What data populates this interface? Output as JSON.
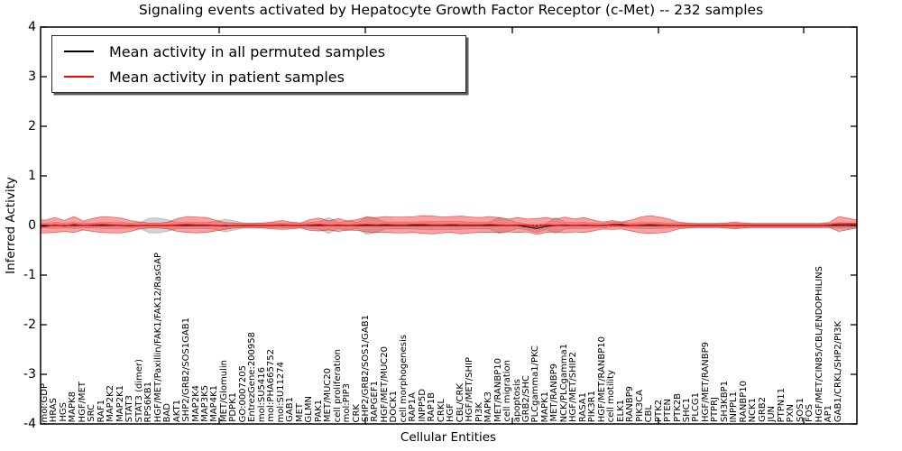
{
  "title": "Signaling events activated by Hepatocyte Growth Factor Receptor (c-Met) -- 232 samples",
  "legend": {
    "items": [
      {
        "label": "Mean activity in all permuted samples",
        "color": "#000000"
      },
      {
        "label": "Mean activity in patient samples",
        "color": "#ff0000"
      }
    ],
    "position": "upper left"
  },
  "axes": {
    "ylabel": "Inferred Activity",
    "xlabel": "Cellular Entities",
    "y_tick_labels": [
      "4",
      "3",
      "2",
      "1",
      "0",
      "-1",
      "-2",
      "-3",
      "-4"
    ],
    "ylim": [
      -4,
      4
    ]
  },
  "colors": {
    "patient_line": "#ff0000",
    "permuted_line": "#000000",
    "patient_band": "rgba(255,30,30,0.42)",
    "permuted_band": "rgba(110,110,110,0.30)",
    "background": "#ffffff"
  },
  "chart_data": {
    "type": "line",
    "title": "Signaling events activated by Hepatocyte Growth Factor Receptor (c-Met) -- 232 samples",
    "xlabel": "Cellular Entities",
    "ylabel": "Inferred Activity",
    "ylim": [
      -4,
      4
    ],
    "grid": false,
    "legend_position": "upper left",
    "sample_count_in_title": 232,
    "categories": [
      "mol:GDP",
      "HRAS",
      "HGS",
      "MAPK8",
      "HGF/MET",
      "SRC",
      "RAF1",
      "MAP2K2",
      "MAP2K1",
      "STAT3",
      "STAT3 (dimer)",
      "RPS6KB1",
      "HGF/MET/Paxillin/FAK1/FAK12/RasGAP",
      "BAD",
      "AKT1",
      "SHP2/GRB2/SOS1GAB1",
      "MAP2K4",
      "MAP3K5",
      "MAP4K1",
      "MET/Glomulin",
      "PDPK1",
      "GO:0007205",
      "EntrezGene:200958",
      "mol:SU5416",
      "mol:PHA665752",
      "mol:SU11274",
      "GAB1",
      "MET",
      "GLMN",
      "PAK1",
      "MET/MUC20",
      "cell proliferation",
      "mol:PIP3",
      "CRK",
      "SHP2/GRB2/SOS1/GAB1",
      "RAPGEF1",
      "HGF/MET/MUC20",
      "DOCK1",
      "cell morphogenesis",
      "RAP1A",
      "INPP5D",
      "RAP1B",
      "CRKL",
      "HGF",
      "CBL/CRK",
      "HGF/MET/SHIP",
      "PI3K",
      "MAPK3",
      "MET/RANBP10",
      "cell migration",
      "apoptosis",
      "GRB2/SHC",
      "PLCgamma1/PKC",
      "MAPK1",
      "MET/RANBP9",
      "NCK/PLCgamma1",
      "HGF/MET/SHIP2",
      "RASA1",
      "PIK3R1",
      "HGF/MET/RANBP10",
      "cell motility",
      "ELK1",
      "RANBP9",
      "PIK3CA",
      "CBL",
      "PTK2",
      "PTEN",
      "PTK2B",
      "SHC1",
      "PLCG1",
      "HGF/MET/RANBP9",
      "PTPRJ",
      "SH3KBP1",
      "INPPL1",
      "RANBP10",
      "NCK1",
      "GRB2",
      "JUN",
      "PTPN11",
      "PXN",
      "SOS1",
      "FOS",
      "HGF/MET/CIN85/CBL/ENDOPHILINS",
      "AP1",
      "GAB1/CRKL/SHP2/PI3K"
    ],
    "series": [
      {
        "name": "Mean activity in all permuted samples",
        "color": "#000000",
        "style": "dashed-at-zero",
        "values": [
          0,
          0,
          0,
          0,
          0,
          0,
          0,
          0,
          0,
          0,
          0,
          0,
          0,
          0,
          0,
          0,
          0,
          0,
          0,
          0,
          0,
          0,
          0,
          0,
          0,
          0,
          0,
          0,
          0,
          0,
          0,
          0,
          0,
          0,
          0,
          0,
          0,
          0,
          0,
          0,
          0,
          0,
          0,
          0,
          0,
          0,
          0,
          0,
          0,
          0,
          0,
          -0.03,
          -0.06,
          -0.02,
          0,
          0,
          0,
          0,
          0,
          0,
          0.02,
          0.02,
          0,
          0,
          0,
          0,
          0,
          0,
          0,
          0,
          0,
          0,
          0,
          0,
          0,
          0,
          0,
          0,
          0,
          0,
          0,
          0,
          0,
          0,
          0
        ]
      },
      {
        "name": "Mean activity in patient samples",
        "color": "#ff0000",
        "style": "solid",
        "values": [
          -0.02,
          0.01,
          -0.01,
          0.02,
          0,
          0.01,
          0.02,
          0.01,
          0,
          -0.01,
          0,
          0,
          0,
          0,
          0.01,
          0.02,
          0.01,
          0.01,
          0,
          -0.01,
          0,
          0,
          0,
          0,
          0,
          0.01,
          0,
          0,
          0.01,
          0.02,
          0,
          0.01,
          0,
          0.01,
          0.02,
          0.01,
          0.02,
          0.01,
          0.01,
          0.02,
          0.02,
          0.01,
          0.01,
          0.02,
          0.01,
          0.01,
          0.01,
          0.02,
          0.01,
          0,
          0.01,
          0,
          -0.02,
          0.01,
          0,
          0.01,
          0,
          0.01,
          0,
          0,
          0.01,
          0,
          0,
          0.01,
          0.02,
          0.01,
          0,
          0,
          0,
          0,
          0,
          0,
          0,
          0,
          0,
          0,
          0,
          0,
          0,
          0,
          0,
          0,
          0,
          0.01,
          0.03
        ]
      }
    ],
    "bands": [
      {
        "name": "Std of permuted samples",
        "color": "rgba(110,110,110,0.30)",
        "edge_color": "rgba(130,130,130,0.5)",
        "edge_halfwidth": 0.05,
        "halfwidths": [
          0.05,
          0.06,
          0.05,
          0.06,
          0.05,
          0.05,
          0.06,
          0.06,
          0.06,
          0.05,
          0.06,
          0.15,
          0.15,
          0.11,
          0.06,
          0.06,
          0.06,
          0.06,
          0.08,
          0.13,
          0.09,
          0.05,
          0.05,
          0.05,
          0.05,
          0.05,
          0.05,
          0.05,
          0.06,
          0.08,
          0.16,
          0.06,
          0.1,
          0.06,
          0.18,
          0.14,
          0.07,
          0.07,
          0.07,
          0.07,
          0.08,
          0.08,
          0.08,
          0.08,
          0.08,
          0.07,
          0.07,
          0.07,
          0.16,
          0.12,
          0.06,
          0.06,
          0.08,
          0.06,
          0.16,
          0.07,
          0.06,
          0.06,
          0.05,
          0.05,
          0.05,
          0.05,
          0.05,
          0.06,
          0.06,
          0.06,
          0.05,
          0.05,
          0.04,
          0.04,
          0.04,
          0.04,
          0.04,
          0.05,
          0.04,
          0.04,
          0.04,
          0.04,
          0.04,
          0.04,
          0.04,
          0.04,
          0.04,
          0.04,
          0.06
        ]
      },
      {
        "name": "Std of patient samples",
        "color": "rgba(255,30,30,0.42)",
        "edge_color": "rgba(200,30,30,0.6)",
        "edge_halfwidth": 0.08,
        "halfwidths": [
          0.13,
          0.15,
          0.11,
          0.16,
          0.09,
          0.13,
          0.16,
          0.16,
          0.15,
          0.11,
          0.07,
          0.05,
          0.05,
          0.07,
          0.13,
          0.16,
          0.16,
          0.15,
          0.11,
          0.07,
          0.05,
          0.04,
          0.04,
          0.05,
          0.07,
          0.09,
          0.07,
          0.05,
          0.11,
          0.13,
          0.09,
          0.13,
          0.09,
          0.11,
          0.15,
          0.15,
          0.16,
          0.16,
          0.16,
          0.16,
          0.18,
          0.18,
          0.16,
          0.16,
          0.18,
          0.16,
          0.15,
          0.16,
          0.15,
          0.13,
          0.15,
          0.13,
          0.16,
          0.15,
          0.13,
          0.16,
          0.13,
          0.15,
          0.11,
          0.07,
          0.09,
          0.07,
          0.11,
          0.16,
          0.18,
          0.16,
          0.13,
          0.07,
          0.05,
          0.04,
          0.04,
          0.04,
          0.05,
          0.07,
          0.05,
          0.04,
          0.04,
          0.04,
          0.04,
          0.04,
          0.04,
          0.04,
          0.04,
          0.05,
          0.15
        ]
      }
    ]
  }
}
